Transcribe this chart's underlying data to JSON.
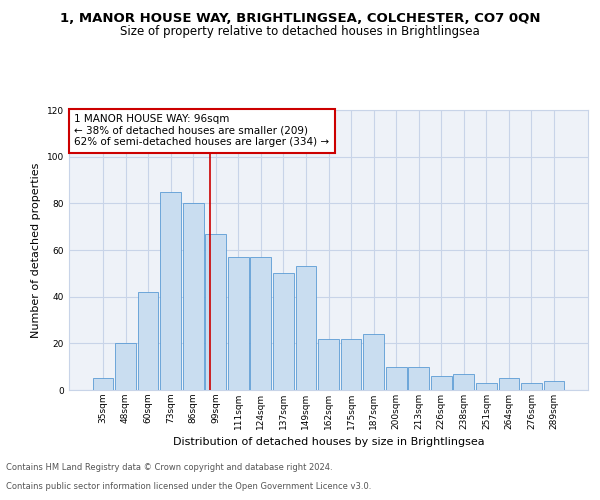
{
  "title1": "1, MANOR HOUSE WAY, BRIGHTLINGSEA, COLCHESTER, CO7 0QN",
  "title2": "Size of property relative to detached houses in Brightlingsea",
  "xlabel": "Distribution of detached houses by size in Brightlingsea",
  "ylabel": "Number of detached properties",
  "bar_labels": [
    "35sqm",
    "48sqm",
    "60sqm",
    "73sqm",
    "86sqm",
    "99sqm",
    "111sqm",
    "124sqm",
    "137sqm",
    "149sqm",
    "162sqm",
    "175sqm",
    "187sqm",
    "200sqm",
    "213sqm",
    "226sqm",
    "238sqm",
    "251sqm",
    "264sqm",
    "276sqm",
    "289sqm"
  ],
  "bar_values": [
    5,
    20,
    42,
    85,
    80,
    67,
    57,
    57,
    50,
    53,
    22,
    22,
    24,
    10,
    10,
    6,
    7,
    3,
    5,
    3,
    4
  ],
  "bar_color": "#c9ddf0",
  "bar_edge_color": "#5b9bd5",
  "annotation_text": "1 MANOR HOUSE WAY: 96sqm\n← 38% of detached houses are smaller (209)\n62% of semi-detached houses are larger (334) →",
  "vline_x": 4.75,
  "vline_color": "#cc0000",
  "ylim": [
    0,
    120
  ],
  "yticks": [
    0,
    20,
    40,
    60,
    80,
    100,
    120
  ],
  "grid_color": "#c8d4e8",
  "background_color": "#eef2f8",
  "footer_line1": "Contains HM Land Registry data © Crown copyright and database right 2024.",
  "footer_line2": "Contains public sector information licensed under the Open Government Licence v3.0.",
  "title1_fontsize": 9.5,
  "title2_fontsize": 8.5,
  "xlabel_fontsize": 8,
  "ylabel_fontsize": 8,
  "tick_fontsize": 6.5,
  "footer_fontsize": 6,
  "annotation_fontsize": 7.5
}
